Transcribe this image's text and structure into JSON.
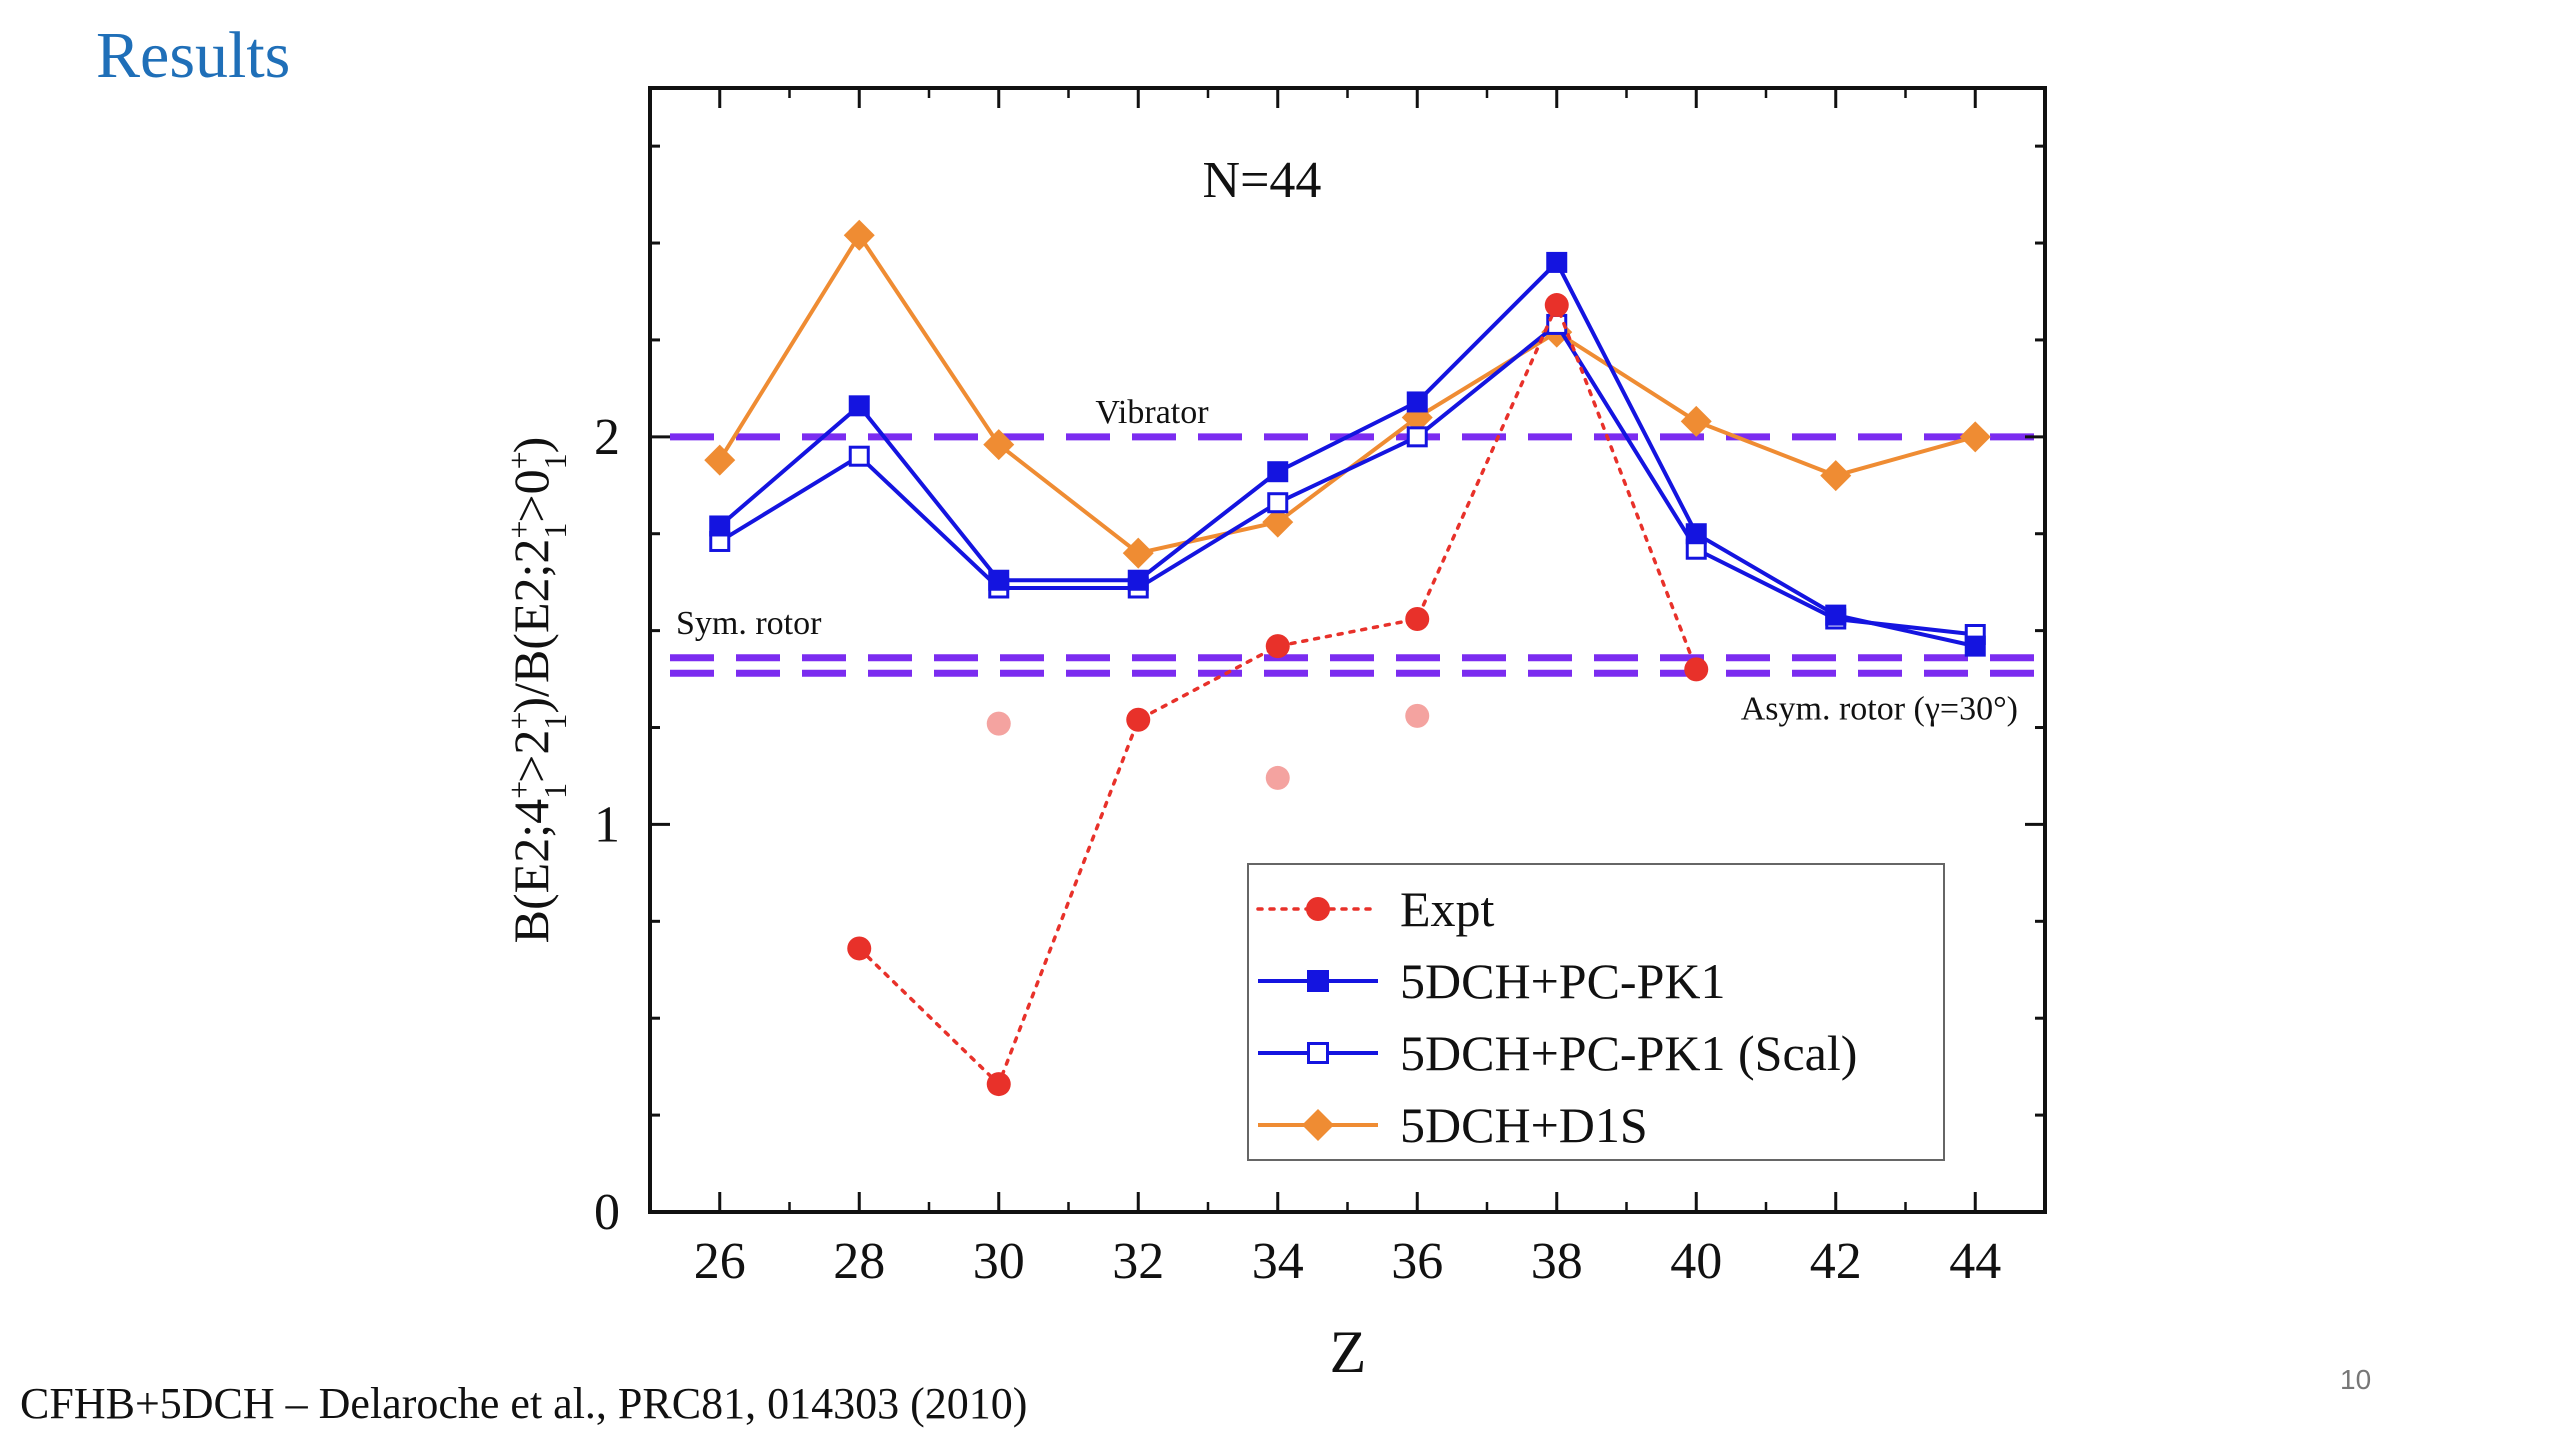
{
  "slide": {
    "title": "Results",
    "citation": "CFHB+5DCH – Delaroche et al., PRC81, 014303 (2010)",
    "page_number": "10"
  },
  "chart_data": {
    "type": "line",
    "title": "N=44",
    "xlabel": "Z",
    "ylabel": "B(E2;4+1>2+1)/B(E2;2+1>0+1)",
    "xlim": [
      25,
      45
    ],
    "ylim": [
      0,
      2.9
    ],
    "x_ticks": [
      26,
      28,
      30,
      32,
      34,
      36,
      38,
      40,
      42,
      44
    ],
    "y_ticks": [
      0,
      1,
      2
    ],
    "legend_position": "bottom-right",
    "series": [
      {
        "name": "Expt",
        "color": "#e8312a",
        "line": "dotted",
        "marker": "circle-filled",
        "points": [
          [
            28,
            0.68
          ],
          [
            30,
            0.33
          ],
          [
            32,
            1.27
          ],
          [
            34,
            1.46
          ],
          [
            36,
            1.53
          ],
          [
            38,
            2.34
          ],
          [
            40,
            1.4
          ]
        ]
      },
      {
        "name": "5DCH+PC-PK1",
        "color": "#1414e0",
        "line": "solid",
        "marker": "square-filled",
        "points": [
          [
            26,
            1.77
          ],
          [
            28,
            2.08
          ],
          [
            30,
            1.63
          ],
          [
            32,
            1.63
          ],
          [
            34,
            1.91
          ],
          [
            36,
            2.09
          ],
          [
            38,
            2.45
          ],
          [
            40,
            1.75
          ],
          [
            42,
            1.54
          ],
          [
            44,
            1.46
          ]
        ]
      },
      {
        "name": "5DCH+PC-PK1 (Scal)",
        "color": "#1414e0",
        "line": "solid",
        "marker": "square-open",
        "points": [
          [
            26,
            1.73
          ],
          [
            28,
            1.95
          ],
          [
            30,
            1.61
          ],
          [
            32,
            1.61
          ],
          [
            34,
            1.83
          ],
          [
            36,
            2.0
          ],
          [
            38,
            2.29
          ],
          [
            40,
            1.71
          ],
          [
            42,
            1.53
          ],
          [
            44,
            1.49
          ]
        ]
      },
      {
        "name": "5DCH+D1S",
        "color": "#ef8c33",
        "line": "solid",
        "marker": "diamond-filled",
        "points": [
          [
            26,
            1.94
          ],
          [
            28,
            2.52
          ],
          [
            30,
            1.98
          ],
          [
            32,
            1.7
          ],
          [
            34,
            1.78
          ],
          [
            36,
            2.05
          ],
          [
            38,
            2.27
          ],
          [
            40,
            2.04
          ],
          [
            42,
            1.9
          ],
          [
            44,
            2.0
          ]
        ]
      }
    ],
    "faded_points": {
      "color": "#f4a3a0",
      "points": [
        [
          30,
          1.26
        ],
        [
          34,
          1.12
        ],
        [
          36,
          1.28
        ]
      ]
    },
    "reference_lines": [
      {
        "label": "Vibrator",
        "y": 2.0,
        "color": "#7b2cf0"
      },
      {
        "label": "Sym. rotor",
        "y": 1.43,
        "color": "#7b2cf0"
      },
      {
        "label": "Asym. rotor (γ=30°)",
        "y": 1.39,
        "color": "#7b2cf0"
      }
    ]
  }
}
